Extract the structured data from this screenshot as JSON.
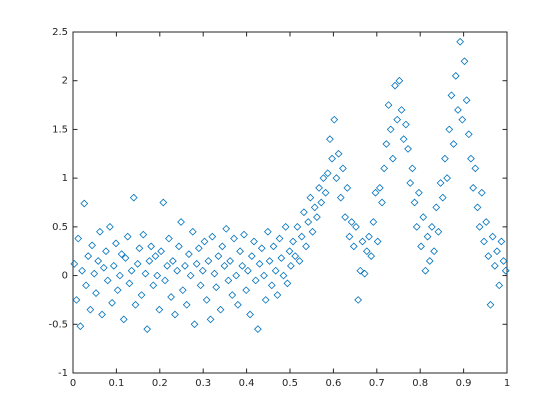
{
  "chart_data": {
    "type": "scatter",
    "marker": "diamond",
    "color": "#0072bd",
    "grid": false,
    "xlim": [
      0,
      1
    ],
    "ylim": [
      -1,
      2.5
    ],
    "xticks": [
      0,
      0.1,
      0.2,
      0.3,
      0.4,
      0.5,
      0.6,
      0.7,
      0.8,
      0.9,
      1
    ],
    "yticks": [
      -1,
      -0.5,
      0,
      0.5,
      1,
      1.5,
      2,
      2.5
    ],
    "x": [
      0.003,
      0.008,
      0.012,
      0.017,
      0.021,
      0.026,
      0.03,
      0.035,
      0.04,
      0.044,
      0.049,
      0.053,
      0.058,
      0.062,
      0.067,
      0.071,
      0.076,
      0.08,
      0.085,
      0.09,
      0.094,
      0.099,
      0.103,
      0.108,
      0.112,
      0.117,
      0.121,
      0.126,
      0.13,
      0.135,
      0.14,
      0.144,
      0.149,
      0.153,
      0.158,
      0.162,
      0.167,
      0.171,
      0.176,
      0.18,
      0.185,
      0.19,
      0.194,
      0.199,
      0.203,
      0.208,
      0.212,
      0.217,
      0.221,
      0.226,
      0.23,
      0.235,
      0.24,
      0.244,
      0.249,
      0.253,
      0.258,
      0.262,
      0.267,
      0.271,
      0.276,
      0.28,
      0.285,
      0.29,
      0.294,
      0.299,
      0.303,
      0.308,
      0.312,
      0.317,
      0.321,
      0.326,
      0.33,
      0.335,
      0.34,
      0.344,
      0.349,
      0.353,
      0.358,
      0.362,
      0.367,
      0.371,
      0.376,
      0.38,
      0.385,
      0.39,
      0.394,
      0.399,
      0.403,
      0.408,
      0.412,
      0.417,
      0.421,
      0.426,
      0.43,
      0.435,
      0.44,
      0.444,
      0.449,
      0.453,
      0.458,
      0.462,
      0.467,
      0.471,
      0.476,
      0.48,
      0.485,
      0.49,
      0.494,
      0.499,
      0.502,
      0.507,
      0.512,
      0.517,
      0.522,
      0.527,
      0.532,
      0.537,
      0.542,
      0.547,
      0.552,
      0.557,
      0.562,
      0.567,
      0.572,
      0.577,
      0.582,
      0.587,
      0.592,
      0.597,
      0.602,
      0.607,
      0.612,
      0.617,
      0.622,
      0.627,
      0.632,
      0.637,
      0.642,
      0.647,
      0.652,
      0.657,
      0.662,
      0.667,
      0.672,
      0.677,
      0.682,
      0.687,
      0.692,
      0.697,
      0.702,
      0.707,
      0.712,
      0.717,
      0.722,
      0.727,
      0.732,
      0.737,
      0.742,
      0.747,
      0.752,
      0.757,
      0.762,
      0.767,
      0.772,
      0.777,
      0.782,
      0.787,
      0.792,
      0.797,
      0.802,
      0.807,
      0.812,
      0.817,
      0.822,
      0.827,
      0.832,
      0.837,
      0.842,
      0.847,
      0.852,
      0.857,
      0.862,
      0.867,
      0.872,
      0.877,
      0.882,
      0.887,
      0.892,
      0.897,
      0.902,
      0.907,
      0.912,
      0.917,
      0.922,
      0.927,
      0.932,
      0.937,
      0.942,
      0.947,
      0.952,
      0.957,
      0.962,
      0.967,
      0.972,
      0.977,
      0.982,
      0.987,
      0.992,
      0.997
    ],
    "values": [
      0.12,
      -0.25,
      0.38,
      -0.52,
      0.05,
      0.74,
      -0.1,
      0.2,
      -0.35,
      0.31,
      0.02,
      -0.18,
      0.15,
      0.45,
      -0.4,
      0.08,
      0.25,
      -0.05,
      0.5,
      -0.28,
      0.1,
      0.33,
      -0.15,
      0.0,
      0.22,
      -0.45,
      0.18,
      0.4,
      -0.08,
      0.05,
      0.8,
      -0.3,
      0.12,
      0.28,
      -0.2,
      0.42,
      0.02,
      -0.55,
      0.15,
      0.3,
      -0.1,
      0.2,
      0.0,
      -0.35,
      0.25,
      0.75,
      -0.05,
      0.1,
      0.38,
      -0.22,
      0.15,
      -0.4,
      0.05,
      0.3,
      0.55,
      -0.15,
      0.1,
      -0.3,
      0.22,
      0.0,
      0.45,
      -0.5,
      0.12,
      0.28,
      -0.1,
      0.05,
      0.35,
      -0.25,
      0.15,
      -0.45,
      0.4,
      0.02,
      -0.12,
      0.2,
      -0.35,
      0.3,
      0.1,
      0.48,
      -0.05,
      0.15,
      -0.2,
      0.38,
      0.0,
      -0.3,
      0.25,
      0.1,
      0.42,
      -0.15,
      0.05,
      -0.4,
      0.2,
      0.35,
      -0.05,
      -0.55,
      0.12,
      0.28,
      0.0,
      -0.25,
      0.45,
      0.15,
      -0.1,
      0.3,
      0.05,
      -0.2,
      0.38,
      0.18,
      0.0,
      0.5,
      -0.08,
      0.25,
      0.1,
      0.35,
      0.2,
      0.5,
      0.15,
      0.4,
      0.65,
      0.3,
      0.55,
      0.8,
      0.45,
      0.7,
      0.6,
      0.9,
      0.75,
      1.0,
      0.85,
      1.05,
      1.4,
      1.2,
      1.6,
      1.0,
      1.25,
      0.8,
      1.1,
      0.6,
      0.9,
      0.4,
      0.55,
      0.3,
      0.5,
      -0.25,
      0.05,
      0.35,
      0.02,
      0.25,
      0.4,
      0.2,
      0.55,
      0.85,
      0.35,
      0.9,
      0.75,
      1.1,
      1.35,
      1.75,
      1.5,
      1.2,
      1.95,
      1.6,
      2.0,
      1.7,
      1.4,
      1.55,
      1.3,
      0.95,
      1.1,
      0.75,
      0.5,
      0.85,
      0.3,
      0.6,
      0.05,
      0.4,
      0.15,
      0.5,
      0.25,
      0.7,
      0.45,
      0.95,
      0.8,
      1.2,
      1.0,
      1.5,
      1.85,
      1.35,
      2.05,
      1.7,
      2.4,
      1.6,
      2.2,
      1.8,
      1.45,
      1.2,
      0.9,
      1.1,
      0.7,
      0.5,
      0.85,
      0.35,
      0.55,
      0.2,
      -0.3,
      0.4,
      0.1,
      0.25,
      -0.1,
      0.35,
      0.15,
      0.05
    ]
  }
}
